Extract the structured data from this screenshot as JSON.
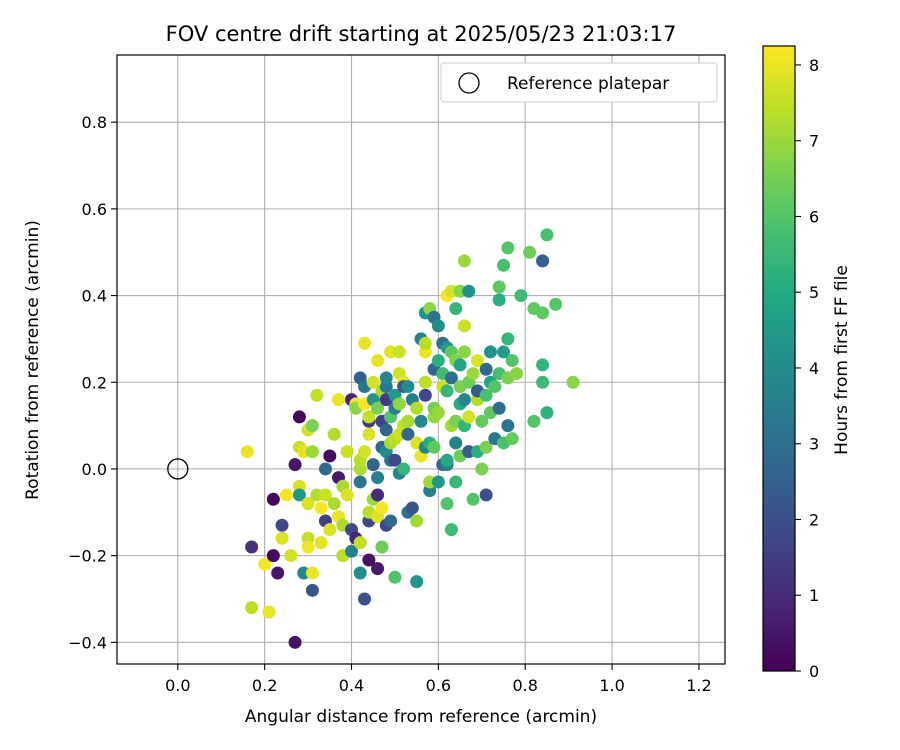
{
  "chart_data": {
    "type": "scatter",
    "title": "FOV centre drift starting at 2025/05/23 21:03:17",
    "xlabel": "Angular distance from reference (arcmin)",
    "ylabel": "Rotation from reference (arcmin)",
    "xlim": [
      -0.14,
      1.26
    ],
    "ylim": [
      -0.45,
      0.955
    ],
    "xticks": [
      0.0,
      0.2,
      0.4,
      0.6,
      0.8,
      1.0,
      1.2
    ],
    "xtick_labels": [
      "0.0",
      "0.2",
      "0.4",
      "0.6",
      "0.8",
      "1.0",
      "1.2"
    ],
    "yticks": [
      -0.4,
      -0.2,
      0.0,
      0.2,
      0.4,
      0.6,
      0.8
    ],
    "ytick_labels": [
      "−0.4",
      "−0.2",
      "0.0",
      "0.2",
      "0.4",
      "0.6",
      "0.8"
    ],
    "grid": true,
    "legend_position": "upper-right",
    "colormap": "viridis",
    "colorbar": {
      "label": "Hours from first FF file",
      "min": 0,
      "max": 8.25,
      "ticks": [
        0,
        1,
        2,
        3,
        4,
        5,
        6,
        7,
        8
      ],
      "tick_labels": [
        "0",
        "1",
        "2",
        "3",
        "4",
        "5",
        "6",
        "7",
        "8"
      ]
    },
    "reference": {
      "label": "Reference platepar",
      "x": 0.0,
      "y": 0.0
    },
    "points": [
      [
        0.16,
        0.04,
        8.0
      ],
      [
        0.17,
        -0.32,
        7.4
      ],
      [
        0.17,
        -0.18,
        1.2
      ],
      [
        0.2,
        -0.22,
        8.1
      ],
      [
        0.21,
        -0.33,
        8.0
      ],
      [
        0.22,
        -0.07,
        0.2
      ],
      [
        0.22,
        -0.2,
        0.2
      ],
      [
        0.23,
        -0.24,
        0.5
      ],
      [
        0.24,
        -0.13,
        1.7
      ],
      [
        0.24,
        -0.16,
        7.8
      ],
      [
        0.25,
        -0.06,
        8.2
      ],
      [
        0.26,
        -0.2,
        7.7
      ],
      [
        0.27,
        -0.4,
        0.4
      ],
      [
        0.27,
        0.01,
        0.5
      ],
      [
        0.28,
        0.12,
        0.1
      ],
      [
        0.28,
        -0.04,
        7.8
      ],
      [
        0.28,
        0.05,
        7.6
      ],
      [
        0.28,
        -0.06,
        4.5
      ],
      [
        0.29,
        -0.24,
        3.8
      ],
      [
        0.29,
        0.04,
        7.9
      ],
      [
        0.3,
        -0.08,
        7.8
      ],
      [
        0.3,
        0.09,
        7.7
      ],
      [
        0.3,
        -0.16,
        7.5
      ],
      [
        0.3,
        -0.18,
        8.1
      ],
      [
        0.31,
        0.1,
        6.6
      ],
      [
        0.31,
        -0.24,
        8.0
      ],
      [
        0.31,
        -0.28,
        2.2
      ],
      [
        0.31,
        0.04,
        7.0
      ],
      [
        0.32,
        0.17,
        7.5
      ],
      [
        0.32,
        -0.06,
        7.3
      ],
      [
        0.33,
        -0.09,
        8.2
      ],
      [
        0.33,
        -0.17,
        7.9
      ],
      [
        0.34,
        0.0,
        2.8
      ],
      [
        0.34,
        -0.06,
        7.6
      ],
      [
        0.34,
        -0.12,
        1.5
      ],
      [
        0.35,
        0.03,
        0.2
      ],
      [
        0.35,
        -0.14,
        7.8
      ],
      [
        0.36,
        -0.08,
        7.2
      ],
      [
        0.36,
        0.08,
        7.3
      ],
      [
        0.37,
        0.16,
        8.0
      ],
      [
        0.37,
        -0.11,
        8.0
      ],
      [
        0.37,
        -0.02,
        0.6
      ],
      [
        0.38,
        -0.13,
        7.2
      ],
      [
        0.38,
        -0.04,
        7.2
      ],
      [
        0.38,
        -0.2,
        7.4
      ],
      [
        0.39,
        0.04,
        7.6
      ],
      [
        0.39,
        -0.06,
        7.8
      ],
      [
        0.4,
        -0.14,
        1.8
      ],
      [
        0.4,
        -0.19,
        3.6
      ],
      [
        0.4,
        0.16,
        0.8
      ],
      [
        0.41,
        0.15,
        8.0
      ],
      [
        0.41,
        0.14,
        6.8
      ],
      [
        0.41,
        -0.16,
        0.9
      ],
      [
        0.42,
        0.21,
        2.5
      ],
      [
        0.42,
        -0.24,
        4.0
      ],
      [
        0.42,
        0.0,
        7.2
      ],
      [
        0.42,
        -0.03,
        3.2
      ],
      [
        0.42,
        0.02,
        7.4
      ],
      [
        0.42,
        -0.17,
        7.5
      ],
      [
        0.43,
        0.29,
        8.0
      ],
      [
        0.43,
        0.15,
        8.2
      ],
      [
        0.43,
        0.19,
        3.2
      ],
      [
        0.43,
        -0.3,
        2.0
      ],
      [
        0.43,
        0.04,
        7.7
      ],
      [
        0.44,
        0.11,
        1.4
      ],
      [
        0.44,
        -0.12,
        1.8
      ],
      [
        0.44,
        -0.1,
        7.4
      ],
      [
        0.44,
        -0.21,
        0.4
      ],
      [
        0.44,
        0.08,
        7.8
      ],
      [
        0.44,
        0.12,
        7.5
      ],
      [
        0.45,
        0.16,
        4.2
      ],
      [
        0.45,
        -0.07,
        7.0
      ],
      [
        0.45,
        0.01,
        2.6
      ],
      [
        0.45,
        0.2,
        7.7
      ],
      [
        0.46,
        0.25,
        7.9
      ],
      [
        0.46,
        0.14,
        6.6
      ],
      [
        0.46,
        -0.02,
        3.6
      ],
      [
        0.46,
        -0.23,
        0.6
      ],
      [
        0.46,
        -0.06,
        1.0
      ],
      [
        0.46,
        -0.11,
        7.8
      ],
      [
        0.47,
        0.18,
        7.2
      ],
      [
        0.47,
        0.11,
        1.6
      ],
      [
        0.47,
        -0.09,
        8.1
      ],
      [
        0.47,
        0.05,
        2.8
      ],
      [
        0.47,
        -0.18,
        6.4
      ],
      [
        0.48,
        0.04,
        3.9
      ],
      [
        0.48,
        0.09,
        2.6
      ],
      [
        0.48,
        0.19,
        3.3
      ],
      [
        0.48,
        0.16,
        1.4
      ],
      [
        0.48,
        0.21,
        3.8
      ],
      [
        0.48,
        -0.13,
        1.7
      ],
      [
        0.49,
        0.27,
        7.9
      ],
      [
        0.49,
        0.12,
        6.0
      ],
      [
        0.49,
        0.06,
        7.2
      ],
      [
        0.49,
        -0.12,
        2.8
      ],
      [
        0.49,
        0.02,
        3.3
      ],
      [
        0.5,
        0.14,
        3.6
      ],
      [
        0.5,
        0.02,
        1.9
      ],
      [
        0.5,
        0.07,
        7.4
      ],
      [
        0.5,
        0.17,
        4.4
      ],
      [
        0.5,
        -0.25,
        5.9
      ],
      [
        0.51,
        0.27,
        7.6
      ],
      [
        0.51,
        0.22,
        7.7
      ],
      [
        0.51,
        0.15,
        6.9
      ],
      [
        0.51,
        0.08,
        7.6
      ],
      [
        0.51,
        -0.01,
        3.7
      ],
      [
        0.52,
        0.2,
        7.9
      ],
      [
        0.52,
        0.19,
        2.2
      ],
      [
        0.52,
        0.1,
        7.5
      ],
      [
        0.52,
        0.0,
        5.4
      ],
      [
        0.53,
        0.19,
        4.0
      ],
      [
        0.53,
        -0.1,
        3.0
      ],
      [
        0.53,
        0.08,
        2.7
      ],
      [
        0.53,
        0.11,
        7.2
      ],
      [
        0.54,
        -0.09,
        2.2
      ],
      [
        0.54,
        0.16,
        3.4
      ],
      [
        0.55,
        -0.26,
        4.3
      ],
      [
        0.55,
        0.06,
        7.8
      ],
      [
        0.55,
        0.14,
        7.3
      ],
      [
        0.55,
        -0.12,
        7.1
      ],
      [
        0.56,
        0.3,
        3.6
      ],
      [
        0.56,
        0.11,
        3.8
      ],
      [
        0.56,
        0.03,
        8.0
      ],
      [
        0.57,
        0.36,
        4.2
      ],
      [
        0.57,
        0.05,
        3.8
      ],
      [
        0.57,
        0.27,
        8.0
      ],
      [
        0.57,
        0.29,
        7.4
      ],
      [
        0.57,
        0.17,
        1.7
      ],
      [
        0.57,
        0.2,
        7.4
      ],
      [
        0.58,
        0.37,
        6.8
      ],
      [
        0.58,
        -0.05,
        3.6
      ],
      [
        0.58,
        0.06,
        5.2
      ],
      [
        0.58,
        -0.03,
        7.1
      ],
      [
        0.59,
        0.35,
        3.2
      ],
      [
        0.59,
        0.12,
        6.9
      ],
      [
        0.59,
        0.23,
        2.8
      ],
      [
        0.59,
        0.14,
        6.5
      ],
      [
        0.59,
        0.05,
        6.2
      ],
      [
        0.6,
        0.33,
        4.0
      ],
      [
        0.6,
        0.25,
        5.2
      ],
      [
        0.6,
        0.13,
        7.0
      ],
      [
        0.6,
        -0.03,
        4.4
      ],
      [
        0.61,
        0.29,
        3.0
      ],
      [
        0.61,
        0.19,
        7.6
      ],
      [
        0.61,
        0.22,
        5.7
      ],
      [
        0.61,
        0.01,
        2.7
      ],
      [
        0.62,
        0.4,
        8.2
      ],
      [
        0.62,
        0.28,
        4.3
      ],
      [
        0.62,
        0.18,
        5.4
      ],
      [
        0.62,
        0.01,
        3.4
      ],
      [
        0.62,
        0.02,
        5.0
      ],
      [
        0.62,
        -0.08,
        6.0
      ],
      [
        0.63,
        0.41,
        7.7
      ],
      [
        0.63,
        0.27,
        6.2
      ],
      [
        0.63,
        0.1,
        7.1
      ],
      [
        0.63,
        0.21,
        3.0
      ],
      [
        0.63,
        -0.14,
        5.6
      ],
      [
        0.64,
        0.37,
        5.4
      ],
      [
        0.64,
        0.25,
        6.7
      ],
      [
        0.64,
        0.06,
        3.6
      ],
      [
        0.64,
        0.11,
        6.6
      ],
      [
        0.64,
        -0.03,
        5.5
      ],
      [
        0.65,
        0.41,
        6.8
      ],
      [
        0.65,
        0.24,
        4.8
      ],
      [
        0.65,
        0.19,
        6.6
      ],
      [
        0.65,
        0.15,
        5.0
      ],
      [
        0.65,
        0.03,
        6.4
      ],
      [
        0.66,
        0.48,
        7.0
      ],
      [
        0.66,
        0.33,
        7.6
      ],
      [
        0.66,
        0.27,
        6.8
      ],
      [
        0.66,
        0.16,
        3.8
      ],
      [
        0.66,
        0.1,
        5.4
      ],
      [
        0.67,
        0.41,
        4.2
      ],
      [
        0.67,
        0.2,
        6.4
      ],
      [
        0.67,
        0.12,
        7.7
      ],
      [
        0.67,
        0.04,
        2.4
      ],
      [
        0.68,
        0.22,
        7.0
      ],
      [
        0.68,
        -0.07,
        6.0
      ],
      [
        0.69,
        0.25,
        7.8
      ],
      [
        0.69,
        0.16,
        7.3
      ],
      [
        0.69,
        0.18,
        2.3
      ],
      [
        0.69,
        0.04,
        5.2
      ],
      [
        0.7,
        0.11,
        6.3
      ],
      [
        0.7,
        0.0,
        6.6
      ],
      [
        0.71,
        0.23,
        2.8
      ],
      [
        0.71,
        0.17,
        5.8
      ],
      [
        0.71,
        -0.06,
        2.0
      ],
      [
        0.71,
        0.05,
        6.6
      ],
      [
        0.72,
        0.27,
        4.2
      ],
      [
        0.72,
        0.2,
        4.8
      ],
      [
        0.72,
        0.13,
        6.2
      ],
      [
        0.73,
        0.19,
        6.0
      ],
      [
        0.73,
        0.07,
        3.3
      ],
      [
        0.74,
        0.39,
        5.2
      ],
      [
        0.74,
        0.42,
        6.2
      ],
      [
        0.74,
        0.22,
        5.8
      ],
      [
        0.74,
        0.14,
        3.0
      ],
      [
        0.75,
        0.47,
        5.8
      ],
      [
        0.75,
        0.06,
        5.8
      ],
      [
        0.75,
        0.27,
        4.6
      ],
      [
        0.76,
        0.21,
        6.6
      ],
      [
        0.76,
        0.3,
        5.4
      ],
      [
        0.76,
        0.1,
        3.2
      ],
      [
        0.76,
        0.51,
        6.0
      ],
      [
        0.77,
        0.07,
        6.3
      ],
      [
        0.77,
        0.25,
        6.0
      ],
      [
        0.78,
        0.22,
        6.8
      ],
      [
        0.79,
        0.4,
        5.6
      ],
      [
        0.81,
        0.5,
        6.4
      ],
      [
        0.82,
        0.11,
        6.0
      ],
      [
        0.82,
        0.37,
        6.2
      ],
      [
        0.84,
        0.48,
        2.5
      ],
      [
        0.84,
        0.36,
        6.2
      ],
      [
        0.84,
        0.24,
        5.4
      ],
      [
        0.84,
        0.2,
        5.6
      ],
      [
        0.85,
        0.54,
        5.8
      ],
      [
        0.85,
        0.13,
        5.3
      ],
      [
        0.87,
        0.38,
        6.0
      ],
      [
        0.91,
        0.2,
        6.8
      ]
    ]
  }
}
